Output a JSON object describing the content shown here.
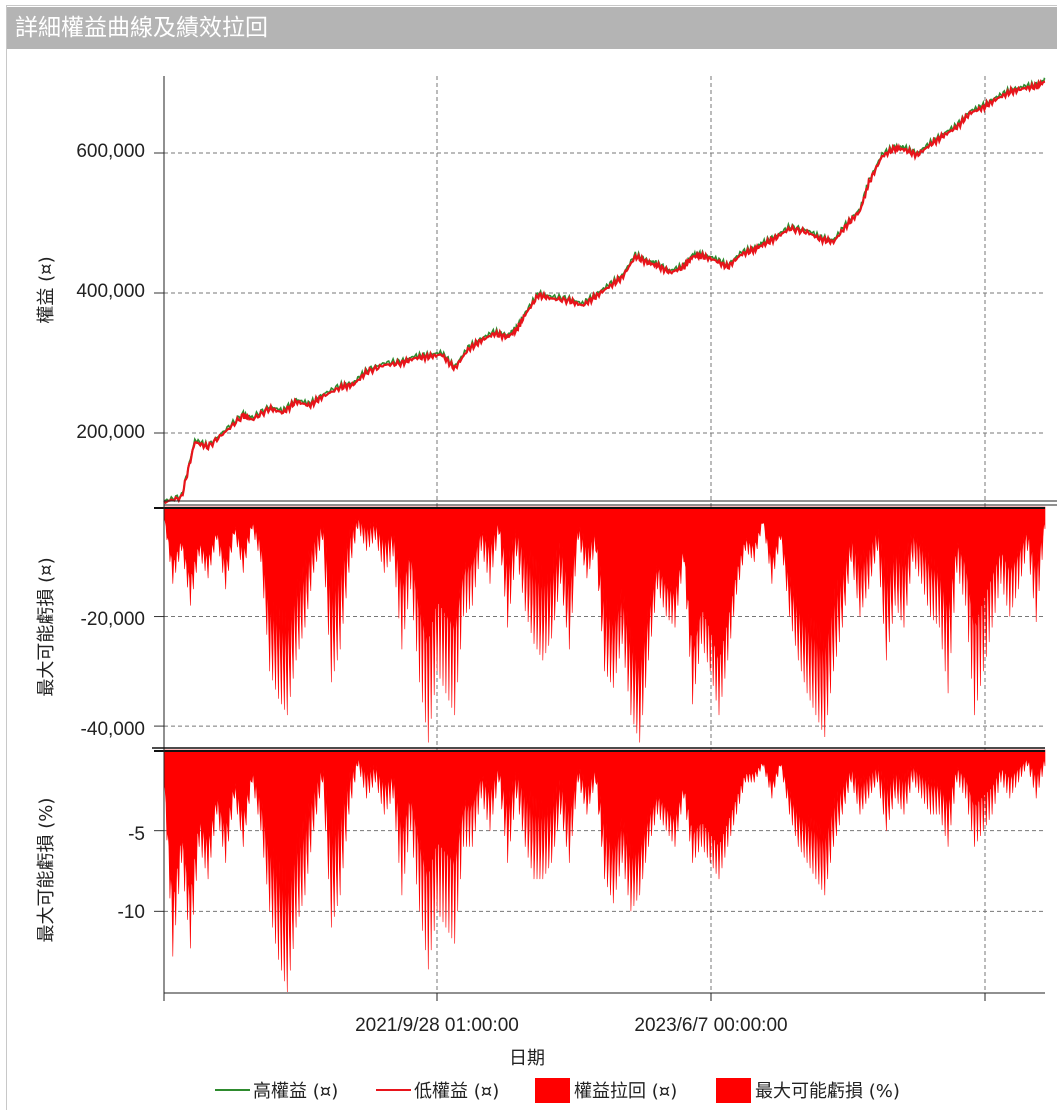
{
  "window": {
    "title": "詳細權益曲線及績效拉回"
  },
  "chart_data": [
    {
      "type": "line",
      "panel": "equity",
      "ylabel": "權益 (¤)",
      "yticks": [
        200000,
        400000,
        600000
      ],
      "ytick_labels": [
        "200,000",
        "400,000",
        "600,000"
      ],
      "ylim": [
        100000,
        710000
      ],
      "grid": true,
      "series": [
        {
          "name": "高權益 (¤)",
          "color": "#2e8b2e",
          "x": [
            0.0,
            0.02,
            0.035,
            0.05,
            0.07,
            0.09,
            0.1,
            0.12,
            0.135,
            0.15,
            0.165,
            0.18,
            0.2,
            0.215,
            0.23,
            0.25,
            0.27,
            0.285,
            0.3,
            0.315,
            0.33,
            0.345,
            0.36,
            0.375,
            0.39,
            0.4,
            0.41,
            0.425,
            0.44,
            0.46,
            0.475,
            0.49,
            0.505,
            0.52,
            0.535,
            0.55,
            0.56,
            0.575,
            0.59,
            0.6,
            0.61,
            0.625,
            0.64,
            0.655,
            0.67,
            0.68,
            0.695,
            0.71,
            0.73,
            0.745,
            0.76,
            0.775,
            0.79,
            0.8,
            0.815,
            0.83,
            0.84,
            0.855,
            0.87,
            0.885,
            0.9,
            0.915,
            0.93,
            0.945,
            0.96,
            0.975,
            0.99,
            1.0
          ],
          "y": [
            103000,
            110000,
            190000,
            182000,
            205000,
            228000,
            222000,
            238000,
            232000,
            248000,
            242000,
            255000,
            268000,
            272000,
            290000,
            300000,
            303000,
            310000,
            312000,
            315000,
            295000,
            322000,
            335000,
            345000,
            340000,
            350000,
            372000,
            400000,
            395000,
            392000,
            385000,
            398000,
            412000,
            425000,
            455000,
            446000,
            442000,
            432000,
            440000,
            455000,
            456000,
            450000,
            440000,
            458000,
            465000,
            472000,
            482000,
            495000,
            490000,
            480000,
            476000,
            500000,
            520000,
            560000,
            598000,
            610000,
            608000,
            600000,
            615000,
            628000,
            640000,
            660000,
            668000,
            680000,
            690000,
            695000,
            698000,
            705000
          ]
        },
        {
          "name": "低權益 (¤)",
          "color": "#e8141b",
          "x": [
            0.0,
            0.02,
            0.035,
            0.05,
            0.07,
            0.09,
            0.1,
            0.12,
            0.135,
            0.15,
            0.165,
            0.18,
            0.2,
            0.215,
            0.23,
            0.25,
            0.27,
            0.285,
            0.3,
            0.315,
            0.33,
            0.345,
            0.36,
            0.375,
            0.39,
            0.4,
            0.41,
            0.425,
            0.44,
            0.46,
            0.475,
            0.49,
            0.505,
            0.52,
            0.535,
            0.55,
            0.56,
            0.575,
            0.59,
            0.6,
            0.61,
            0.625,
            0.64,
            0.655,
            0.67,
            0.68,
            0.695,
            0.71,
            0.73,
            0.745,
            0.76,
            0.775,
            0.79,
            0.8,
            0.815,
            0.83,
            0.84,
            0.855,
            0.87,
            0.885,
            0.9,
            0.915,
            0.93,
            0.945,
            0.96,
            0.975,
            0.99,
            1.0
          ],
          "y": [
            101000,
            108000,
            187000,
            180000,
            202000,
            225000,
            219000,
            235000,
            229000,
            245000,
            239000,
            252000,
            265000,
            269000,
            287000,
            297000,
            300000,
            307000,
            309000,
            312000,
            292000,
            319000,
            332000,
            342000,
            337000,
            347000,
            369000,
            397000,
            392000,
            389000,
            382000,
            395000,
            409000,
            422000,
            452000,
            443000,
            439000,
            429000,
            437000,
            452000,
            453000,
            447000,
            437000,
            455000,
            462000,
            469000,
            479000,
            492000,
            487000,
            477000,
            473000,
            497000,
            517000,
            557000,
            595000,
            607000,
            605000,
            597000,
            612000,
            625000,
            637000,
            657000,
            665000,
            677000,
            687000,
            692000,
            695000,
            702000
          ]
        }
      ]
    },
    {
      "type": "area",
      "panel": "drawdown",
      "ylabel": "最大可能虧損 (¤)",
      "yticks": [
        -20000,
        -40000
      ],
      "ytick_labels": [
        "-20,000",
        "-40,000"
      ],
      "ylim": [
        -44000,
        0
      ],
      "grid": true,
      "series": [
        {
          "name": "權益拉回 (¤)",
          "color": "#ff0000",
          "x": [
            0.0,
            0.01,
            0.02,
            0.03,
            0.04,
            0.05,
            0.06,
            0.07,
            0.08,
            0.09,
            0.1,
            0.11,
            0.12,
            0.13,
            0.14,
            0.15,
            0.16,
            0.17,
            0.18,
            0.19,
            0.2,
            0.21,
            0.22,
            0.23,
            0.24,
            0.25,
            0.26,
            0.27,
            0.28,
            0.29,
            0.3,
            0.31,
            0.32,
            0.33,
            0.34,
            0.35,
            0.36,
            0.37,
            0.38,
            0.39,
            0.4,
            0.41,
            0.42,
            0.43,
            0.44,
            0.45,
            0.46,
            0.47,
            0.48,
            0.49,
            0.5,
            0.51,
            0.52,
            0.53,
            0.54,
            0.55,
            0.56,
            0.57,
            0.58,
            0.59,
            0.6,
            0.61,
            0.62,
            0.63,
            0.64,
            0.65,
            0.66,
            0.67,
            0.68,
            0.69,
            0.7,
            0.71,
            0.72,
            0.73,
            0.74,
            0.75,
            0.76,
            0.77,
            0.78,
            0.79,
            0.8,
            0.81,
            0.82,
            0.83,
            0.84,
            0.85,
            0.86,
            0.87,
            0.88,
            0.89,
            0.9,
            0.91,
            0.92,
            0.93,
            0.94,
            0.95,
            0.96,
            0.97,
            0.98,
            0.99,
            1.0
          ],
          "y": [
            -2000,
            -14000,
            -8000,
            -18000,
            -9000,
            -13000,
            -6000,
            -15000,
            -5000,
            -12000,
            -4000,
            -10000,
            -30000,
            -35000,
            -38000,
            -28000,
            -22000,
            -12000,
            -6000,
            -32000,
            -26000,
            -12000,
            -4000,
            -8000,
            -6000,
            -12000,
            -9000,
            -26000,
            -15000,
            -32000,
            -43000,
            -30000,
            -34000,
            -38000,
            -20000,
            -18000,
            -8000,
            -14000,
            -5000,
            -22000,
            -9000,
            -19000,
            -25000,
            -28000,
            -24000,
            -14000,
            -26000,
            -6000,
            -13000,
            -8000,
            -30000,
            -33000,
            -25000,
            -38000,
            -43000,
            -28000,
            -15000,
            -20000,
            -22000,
            -10000,
            -36000,
            -25000,
            -30000,
            -38000,
            -28000,
            -16000,
            -8000,
            -10000,
            -3000,
            -14000,
            -6000,
            -20000,
            -28000,
            -34000,
            -38000,
            -42000,
            -30000,
            -22000,
            -10000,
            -20000,
            -15000,
            -8000,
            -28000,
            -18000,
            -22000,
            -10000,
            -14000,
            -20000,
            -22000,
            -34000,
            -12000,
            -18000,
            -38000,
            -30000,
            -22000,
            -14000,
            -20000,
            -15000,
            -8000,
            -21000,
            -4000
          ]
        }
      ]
    },
    {
      "type": "area",
      "panel": "drawdown-percent",
      "ylabel": "最大可能虧損 (%)",
      "yticks": [
        -5,
        -10
      ],
      "ytick_labels": [
        "-5",
        "-10"
      ],
      "ylim": [
        -15,
        0
      ],
      "grid": true,
      "series": [
        {
          "name": "最大可能虧損 (%)",
          "color": "#ff0000",
          "x": [
            0.0,
            0.01,
            0.02,
            0.03,
            0.04,
            0.05,
            0.06,
            0.07,
            0.08,
            0.09,
            0.1,
            0.11,
            0.12,
            0.13,
            0.14,
            0.15,
            0.16,
            0.17,
            0.18,
            0.19,
            0.2,
            0.21,
            0.22,
            0.23,
            0.24,
            0.25,
            0.26,
            0.27,
            0.28,
            0.29,
            0.3,
            0.31,
            0.32,
            0.33,
            0.34,
            0.35,
            0.36,
            0.37,
            0.38,
            0.39,
            0.4,
            0.41,
            0.42,
            0.43,
            0.44,
            0.45,
            0.46,
            0.47,
            0.48,
            0.49,
            0.5,
            0.51,
            0.52,
            0.53,
            0.54,
            0.55,
            0.56,
            0.57,
            0.58,
            0.59,
            0.6,
            0.61,
            0.62,
            0.63,
            0.64,
            0.65,
            0.66,
            0.67,
            0.68,
            0.69,
            0.7,
            0.71,
            0.72,
            0.73,
            0.74,
            0.75,
            0.76,
            0.77,
            0.78,
            0.79,
            0.8,
            0.81,
            0.82,
            0.83,
            0.84,
            0.85,
            0.86,
            0.87,
            0.88,
            0.89,
            0.9,
            0.91,
            0.92,
            0.93,
            0.94,
            0.95,
            0.96,
            0.97,
            0.98,
            0.99,
            1.0
          ],
          "y": [
            -2,
            -12.8,
            -7,
            -12.3,
            -6,
            -8,
            -4,
            -7,
            -3,
            -6,
            -2,
            -5,
            -10,
            -13,
            -15,
            -11,
            -9,
            -5,
            -2,
            -11,
            -9,
            -4,
            -1,
            -3,
            -2,
            -4,
            -3,
            -9,
            -5,
            -10,
            -13.6,
            -10,
            -11,
            -12,
            -6,
            -6,
            -3,
            -5,
            -2,
            -7,
            -3,
            -6,
            -8,
            -8,
            -7,
            -4,
            -7,
            -2,
            -4,
            -2,
            -8,
            -9.5,
            -7,
            -10,
            -9,
            -6,
            -4,
            -5,
            -6,
            -3,
            -7,
            -6,
            -7,
            -8,
            -6,
            -4,
            -2,
            -2,
            -1,
            -3,
            -1,
            -4,
            -6,
            -7,
            -8,
            -9,
            -6,
            -4,
            -2,
            -4,
            -3,
            -2,
            -5,
            -3,
            -4,
            -2,
            -3,
            -4,
            -4,
            -6,
            -2,
            -3,
            -6,
            -5,
            -4,
            -2,
            -3,
            -2,
            -1,
            -3,
            -1
          ]
        }
      ]
    }
  ],
  "xaxis": {
    "xlabel": "日期",
    "tick_labels": [
      "2021/9/28 01:00:00",
      "2023/6/7 00:00:00"
    ]
  },
  "legend": {
    "placement": "bottom",
    "items": [
      {
        "label": "高權益 (¤)",
        "kind": "line",
        "color": "#2e8b2e"
      },
      {
        "label": "低權益 (¤)",
        "kind": "line",
        "color": "#e8141b"
      },
      {
        "label": "權益拉回 (¤)",
        "kind": "box",
        "color": "#ff0000"
      },
      {
        "label": "最大可能虧損 (%)",
        "kind": "box",
        "color": "#ff0000"
      }
    ]
  }
}
